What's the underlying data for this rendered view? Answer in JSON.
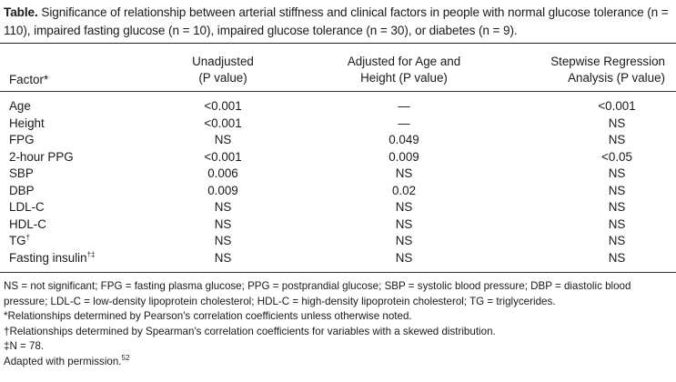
{
  "table": {
    "title_lead": "Table.",
    "title_text": "Significance of relationship between arterial stiffness and clinical factors in people with normal glucose tolerance (n = 110), impaired fasting glucose (n = 10), impaired glucose tolerance (n = 30), or diabetes (n = 9).",
    "headers": {
      "factor": "Factor*",
      "col1_line1": "Unadjusted",
      "col1_line2": "(P value)",
      "col2_line1": "Adjusted for Age and",
      "col2_line2": "Height (P value)",
      "col3_line1": "Stepwise Regression",
      "col3_line2": "Analysis (P value)"
    },
    "rows": [
      {
        "factor": "Age",
        "unadjusted": "<0.001",
        "adjusted": "—",
        "stepwise": "<0.001"
      },
      {
        "factor": "Height",
        "unadjusted": "<0.001",
        "adjusted": "—",
        "stepwise": "NS"
      },
      {
        "factor": "FPG",
        "unadjusted": "NS",
        "adjusted": "0.049",
        "stepwise": "NS"
      },
      {
        "factor": "2-hour PPG",
        "unadjusted": "<0.001",
        "adjusted": "0.009",
        "stepwise": "<0.05"
      },
      {
        "factor": "SBP",
        "unadjusted": "0.006",
        "adjusted": "NS",
        "stepwise": "NS"
      },
      {
        "factor": "DBP",
        "unadjusted": "0.009",
        "adjusted": "0.02",
        "stepwise": "NS"
      },
      {
        "factor": "LDL-C",
        "unadjusted": "NS",
        "adjusted": "NS",
        "stepwise": "NS"
      },
      {
        "factor": "HDL-C",
        "unadjusted": "NS",
        "adjusted": "NS",
        "stepwise": "NS"
      },
      {
        "factor": "TG",
        "factor_sup": "†",
        "unadjusted": "NS",
        "adjusted": "NS",
        "stepwise": "NS"
      },
      {
        "factor": "Fasting insulin",
        "factor_sup": "†‡",
        "unadjusted": "NS",
        "adjusted": "NS",
        "stepwise": "NS"
      }
    ],
    "notes": {
      "abbrev": "NS = not significant; FPG = fasting plasma glucose; PPG = postprandial glucose; SBP = systolic blood pressure; DBP = diastolic blood pressure; LDL-C = low-density lipoprotein cholesterol; HDL-C = high-density lipoprotein cholesterol; TG = triglycerides.",
      "star": "*Relationships determined by Pearson's correlation coefficients unless otherwise noted.",
      "dagger": "†Relationships determined by Spearman's correlation coefficients for variables with a skewed distribution.",
      "ddagger": "‡N = 78.",
      "adapted_text": "Adapted with permission.",
      "adapted_ref": "52"
    }
  }
}
